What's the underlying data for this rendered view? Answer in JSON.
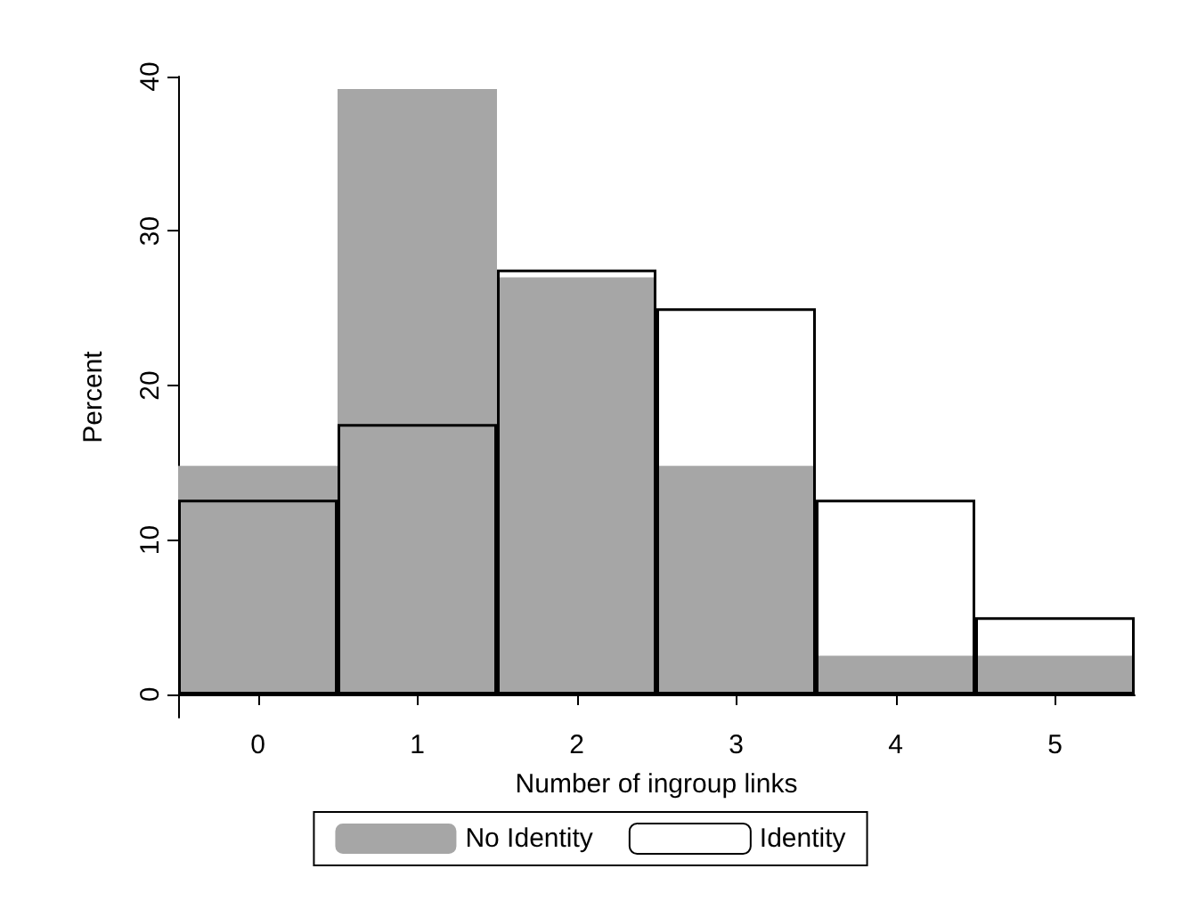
{
  "chart_data": {
    "type": "bar",
    "xlabel": "Number of ingroup links",
    "ylabel": "Percent",
    "categories": [
      "0",
      "1",
      "2",
      "3",
      "4",
      "5"
    ],
    "series": [
      {
        "name": "No Identity",
        "color": "#a6a6a6",
        "values": [
          14.8,
          39.2,
          27.0,
          14.8,
          2.5,
          2.5
        ]
      },
      {
        "name": "Identity",
        "color": "#000000",
        "values": [
          12.6,
          17.5,
          27.5,
          25.0,
          12.6,
          5.0
        ]
      }
    ],
    "ylim": [
      -1.5,
      40
    ],
    "yticks": [
      0,
      10,
      20,
      30,
      40
    ],
    "grid": false,
    "legend": "bottom"
  }
}
